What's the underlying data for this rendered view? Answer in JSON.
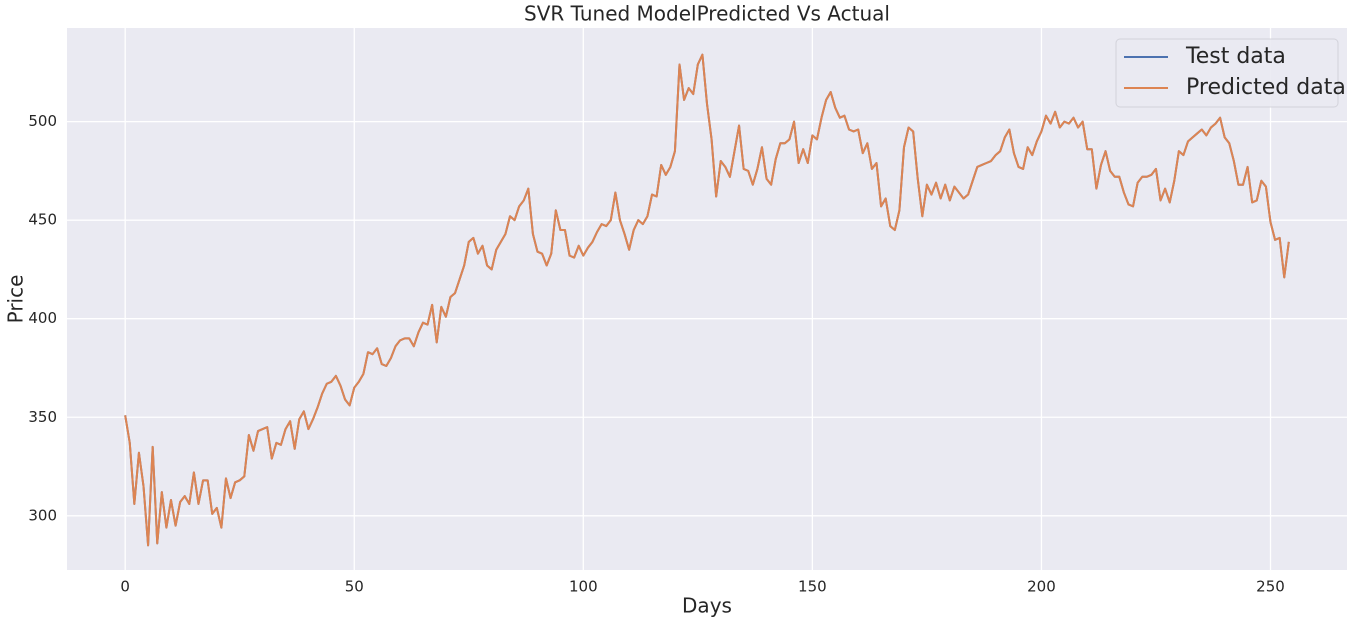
{
  "chart_data": {
    "type": "line",
    "title": "SVR Tuned ModelPredicted Vs Actual",
    "xlabel": "Days",
    "ylabel": "Price",
    "x": [
      0,
      1,
      2,
      3,
      4,
      5,
      6,
      7,
      8,
      9,
      10,
      11,
      12,
      13,
      14,
      15,
      16,
      17,
      18,
      19,
      20,
      21,
      22,
      23,
      24,
      25,
      26,
      27,
      28,
      29,
      30,
      31,
      32,
      33,
      34,
      35,
      36,
      37,
      38,
      39,
      40,
      41,
      42,
      43,
      44,
      45,
      46,
      47,
      48,
      49,
      50,
      51,
      52,
      53,
      54,
      55,
      56,
      57,
      58,
      59,
      60,
      61,
      62,
      63,
      64,
      65,
      66,
      67,
      68,
      69,
      70,
      71,
      72,
      73,
      74,
      75,
      76,
      77,
      78,
      79,
      80,
      81,
      82,
      83,
      84,
      85,
      86,
      87,
      88,
      89,
      90,
      91,
      92,
      93,
      94,
      95,
      96,
      97,
      98,
      99,
      100,
      101,
      102,
      103,
      104,
      105,
      106,
      107,
      108,
      109,
      110,
      111,
      112,
      113,
      114,
      115,
      116,
      117,
      118,
      119,
      120,
      121,
      122,
      123,
      124,
      125,
      126,
      127,
      128,
      129,
      130,
      131,
      132,
      133,
      134,
      135,
      136,
      137,
      138,
      139,
      140,
      141,
      142,
      143,
      144,
      145,
      146,
      147,
      148,
      149,
      150,
      151,
      152,
      153,
      154,
      155,
      156,
      157,
      158,
      159,
      160,
      161,
      162,
      163,
      164,
      165,
      166,
      167,
      168,
      169,
      170,
      171,
      172,
      173,
      174,
      175,
      176,
      177,
      178,
      179,
      180,
      181,
      182,
      183,
      184,
      185,
      186,
      187,
      188,
      189,
      190,
      191,
      192,
      193,
      194,
      195,
      196,
      197,
      198,
      199,
      200,
      201,
      202,
      203,
      204,
      205,
      206,
      207,
      208,
      209,
      210,
      211,
      212,
      213,
      214,
      215,
      216,
      217,
      218,
      219,
      220,
      221,
      222,
      223,
      224,
      225,
      226,
      227,
      228,
      229,
      230,
      231,
      232,
      233,
      234,
      235,
      236,
      237,
      238,
      239,
      240,
      241,
      242,
      243,
      244,
      245,
      246,
      247,
      248,
      249,
      250,
      251,
      252,
      253,
      254
    ],
    "series": [
      {
        "name": "Test data",
        "color": "#4c72b0",
        "values": [
          351,
          337,
          306,
          332,
          315,
          285,
          335,
          286,
          312,
          294,
          308,
          295,
          307,
          310,
          306,
          322,
          306,
          318,
          318,
          301,
          304,
          294,
          319,
          309,
          317,
          318,
          320,
          341,
          333,
          343,
          344,
          345,
          329,
          337,
          336,
          344,
          348,
          334,
          349,
          353,
          344,
          349,
          355,
          362,
          367,
          368,
          371,
          366,
          359,
          356,
          365,
          368,
          372,
          383,
          382,
          385,
          377,
          376,
          380,
          386,
          389,
          390,
          390,
          386,
          393,
          398,
          397,
          407,
          388,
          406,
          401,
          411,
          413,
          420,
          427,
          439,
          441,
          433,
          437,
          427,
          425,
          435,
          439,
          443,
          452,
          450,
          457,
          460,
          466,
          443,
          434,
          433,
          427,
          433,
          455,
          445,
          445,
          432,
          431,
          437,
          432,
          436,
          439,
          444,
          448,
          447,
          450,
          464,
          450,
          443,
          435,
          445,
          450,
          448,
          452,
          463,
          462,
          478,
          473,
          477,
          485,
          529,
          511,
          517,
          514,
          529,
          534,
          509,
          491,
          462,
          480,
          477,
          472,
          485,
          498,
          476,
          475,
          468,
          476,
          487,
          471,
          468,
          481,
          489,
          489,
          491,
          500,
          479,
          486,
          479,
          493,
          491,
          502,
          511,
          515,
          507,
          502,
          503,
          496,
          495,
          496,
          484,
          489,
          476,
          479,
          457,
          461,
          447,
          445,
          455,
          487,
          497,
          495,
          471,
          452,
          468,
          463,
          469,
          461,
          468,
          460,
          467,
          464,
          461,
          463,
          470,
          477,
          478,
          479,
          480,
          483,
          485,
          492,
          496,
          484,
          477,
          476,
          487,
          483,
          490,
          495,
          503,
          499,
          505,
          497,
          500,
          499,
          502,
          497,
          500,
          486,
          486,
          466,
          478,
          485,
          475,
          472,
          472,
          464,
          458,
          457,
          469,
          472,
          472,
          473,
          476,
          460,
          466,
          459,
          470,
          485,
          483,
          490,
          492,
          494,
          496,
          493,
          497,
          499,
          502,
          492,
          489,
          480,
          468,
          468,
          477,
          459,
          460,
          470,
          467,
          449,
          440,
          441,
          421,
          439
        ]
      },
      {
        "name": "Predicted data",
        "color": "#dd8452",
        "values": [
          351,
          337,
          306,
          332,
          315,
          285,
          335,
          286,
          312,
          294,
          308,
          295,
          307,
          310,
          306,
          322,
          306,
          318,
          318,
          301,
          304,
          294,
          319,
          309,
          317,
          318,
          320,
          341,
          333,
          343,
          344,
          345,
          329,
          337,
          336,
          344,
          348,
          334,
          349,
          353,
          344,
          349,
          355,
          362,
          367,
          368,
          371,
          366,
          359,
          356,
          365,
          368,
          372,
          383,
          382,
          385,
          377,
          376,
          380,
          386,
          389,
          390,
          390,
          386,
          393,
          398,
          397,
          407,
          388,
          406,
          401,
          411,
          413,
          420,
          427,
          439,
          441,
          433,
          437,
          427,
          425,
          435,
          439,
          443,
          452,
          450,
          457,
          460,
          466,
          443,
          434,
          433,
          427,
          433,
          455,
          445,
          445,
          432,
          431,
          437,
          432,
          436,
          439,
          444,
          448,
          447,
          450,
          464,
          450,
          443,
          435,
          445,
          450,
          448,
          452,
          463,
          462,
          478,
          473,
          477,
          485,
          529,
          511,
          517,
          514,
          529,
          534,
          509,
          491,
          462,
          480,
          477,
          472,
          485,
          498,
          476,
          475,
          468,
          476,
          487,
          471,
          468,
          481,
          489,
          489,
          491,
          500,
          479,
          486,
          479,
          493,
          491,
          502,
          511,
          515,
          507,
          502,
          503,
          496,
          495,
          496,
          484,
          489,
          476,
          479,
          457,
          461,
          447,
          445,
          455,
          487,
          497,
          495,
          471,
          452,
          468,
          463,
          469,
          461,
          468,
          460,
          467,
          464,
          461,
          463,
          470,
          477,
          478,
          479,
          480,
          483,
          485,
          492,
          496,
          484,
          477,
          476,
          487,
          483,
          490,
          495,
          503,
          499,
          505,
          497,
          500,
          499,
          502,
          497,
          500,
          486,
          486,
          466,
          478,
          485,
          475,
          472,
          472,
          464,
          458,
          457,
          469,
          472,
          472,
          473,
          476,
          460,
          466,
          459,
          470,
          485,
          483,
          490,
          492,
          494,
          496,
          493,
          497,
          499,
          502,
          492,
          489,
          480,
          468,
          468,
          477,
          459,
          460,
          470,
          467,
          449,
          440,
          441,
          421,
          439
        ]
      }
    ],
    "xlim": [
      -12.7,
      266.7
    ],
    "ylim": [
      272.5,
      547.5
    ],
    "xticks": [
      0,
      50,
      100,
      150,
      200,
      250
    ],
    "yticks": [
      300,
      350,
      400,
      450,
      500
    ],
    "grid": true,
    "legend": "upper right",
    "background": "#eaeaf2"
  }
}
